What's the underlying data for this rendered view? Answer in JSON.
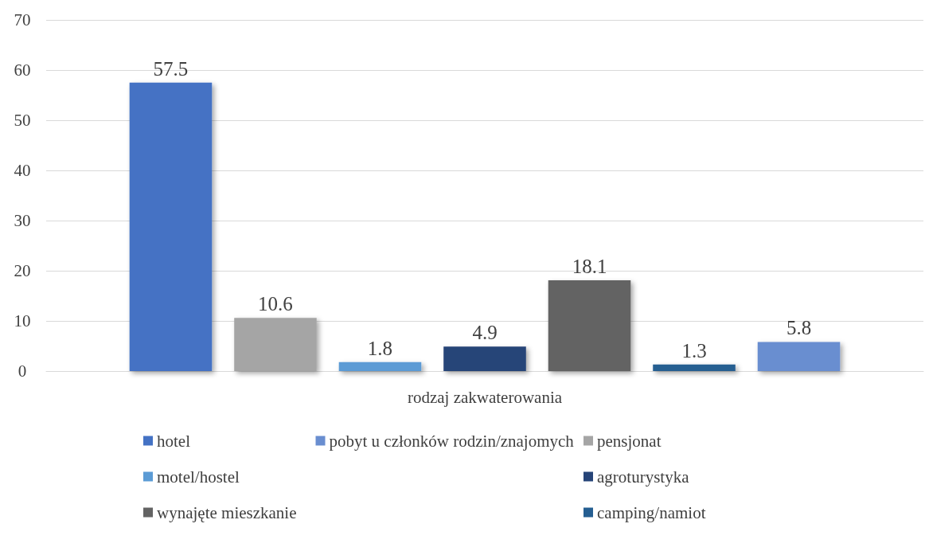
{
  "chart_data": {
    "type": "bar",
    "categories": [
      "rodzaj zakwaterowania"
    ],
    "series": [
      {
        "name": "hotel",
        "color": "#4472c4",
        "values": [
          57.5
        ]
      },
      {
        "name": "pensjonat",
        "color": "#a5a5a5",
        "values": [
          10.6
        ]
      },
      {
        "name": "motel/hostel",
        "color": "#5b9bd5",
        "values": [
          1.8
        ]
      },
      {
        "name": "agroturystyka",
        "color": "#264478",
        "values": [
          4.9
        ]
      },
      {
        "name": "wynajęte mieszkanie",
        "color": "#636363",
        "values": [
          18.1
        ]
      },
      {
        "name": "camping/namiot",
        "color": "#255e91",
        "values": [
          1.3
        ]
      },
      {
        "name": "pobyt u członków rodzin/znajomych",
        "color": "#698ed0",
        "values": [
          5.8
        ]
      }
    ],
    "ylim": [
      0,
      70
    ],
    "yticks": [
      0,
      10,
      20,
      30,
      40,
      50,
      60,
      70
    ],
    "grid": true,
    "legend": "bottom",
    "data_labels": true
  }
}
